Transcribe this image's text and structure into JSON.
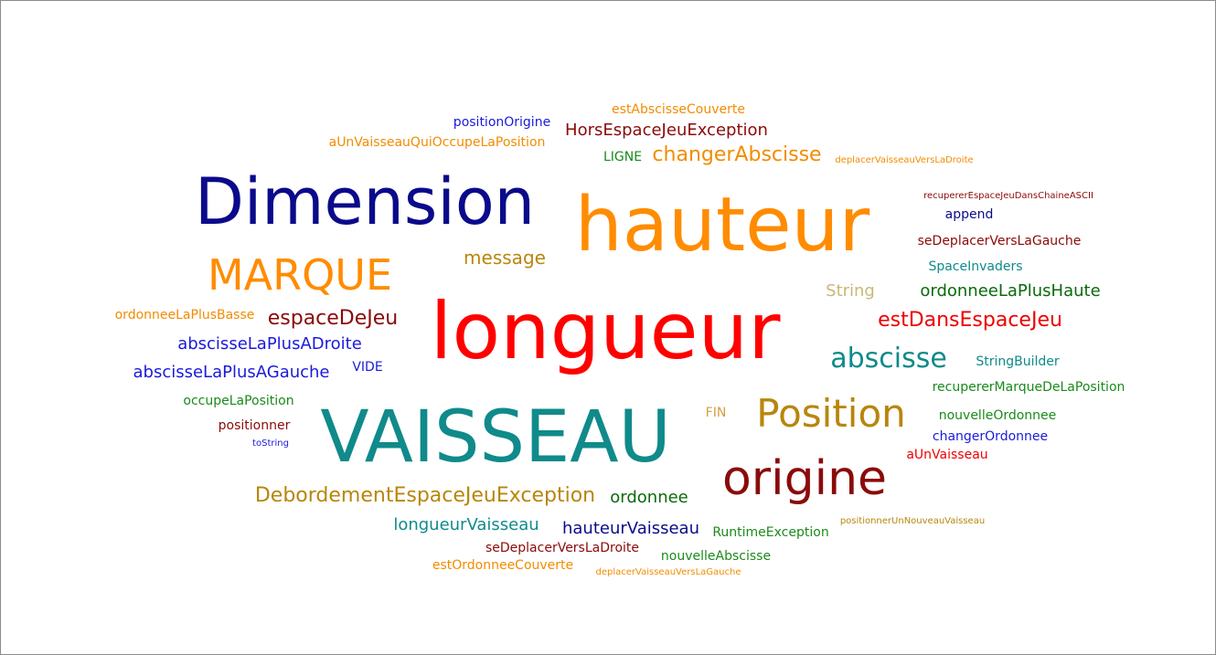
{
  "words": [
    {
      "text": "estAbscisseCouverte",
      "color": "#f28c00"
    },
    {
      "text": "positionOrigine",
      "color": "#1a1adb"
    },
    {
      "text": "HorsEspaceJeuException",
      "color": "#8b0a0a"
    },
    {
      "text": "aUnVaisseauQuiOccupeLaPosition",
      "color": "#f28c00"
    },
    {
      "text": "LIGNE",
      "color": "#1a8a1a"
    },
    {
      "text": "changerAbscisse",
      "color": "#f28c00"
    },
    {
      "text": "deplacerVaisseauVersLaDroite",
      "color": "#f28c00"
    },
    {
      "text": "Dimension",
      "color": "#0a0a8b"
    },
    {
      "text": "hauteur",
      "color": "#ff8c00"
    },
    {
      "text": "recupererEspaceJeuDansChaineASCII",
      "color": "#8b0a0a"
    },
    {
      "text": "append",
      "color": "#0a0a8b"
    },
    {
      "text": "seDeplacerVersLaGauche",
      "color": "#8b0a0a"
    },
    {
      "text": "MARQUE",
      "color": "#ff8c00"
    },
    {
      "text": "message",
      "color": "#b8860b"
    },
    {
      "text": "SpaceInvaders",
      "color": "#108a8a"
    },
    {
      "text": "String",
      "color": "#c8b878"
    },
    {
      "text": "ordonneeLaPlusHaute",
      "color": "#0a6a0a"
    },
    {
      "text": "ordonneeLaPlusBasse",
      "color": "#f28c00"
    },
    {
      "text": "espaceDeJeu",
      "color": "#8b0a0a"
    },
    {
      "text": "longueur",
      "color": "#ff0000"
    },
    {
      "text": "estDansEspaceJeu",
      "color": "#ee0000"
    },
    {
      "text": "abscisseLaPlusADroite",
      "color": "#1a1adb"
    },
    {
      "text": "abscisse",
      "color": "#108a8a"
    },
    {
      "text": "StringBuilder",
      "color": "#108a8a"
    },
    {
      "text": "VIDE",
      "color": "#1a1adb"
    },
    {
      "text": "abscisseLaPlusAGauche",
      "color": "#1a1adb"
    },
    {
      "text": "recupererMarqueDeLaPosition",
      "color": "#1a8a1a"
    },
    {
      "text": "occupeLaPosition",
      "color": "#1a8a1a"
    },
    {
      "text": "Position",
      "color": "#b8860b"
    },
    {
      "text": "FIN",
      "color": "#d4a040"
    },
    {
      "text": "nouvelleOrdonnee",
      "color": "#1a8a1a"
    },
    {
      "text": "positionner",
      "color": "#8b0a0a"
    },
    {
      "text": "VAISSEAU",
      "color": "#108a8a"
    },
    {
      "text": "changerOrdonnee",
      "color": "#1a1adb"
    },
    {
      "text": "toString",
      "color": "#1a1adb"
    },
    {
      "text": "aUnVaisseau",
      "color": "#ee0000"
    },
    {
      "text": "origine",
      "color": "#8b0a0a"
    },
    {
      "text": "DebordementEspaceJeuException",
      "color": "#b8860b"
    },
    {
      "text": "ordonnee",
      "color": "#0a6a0a"
    },
    {
      "text": "longueurVaisseau",
      "color": "#108a8a"
    },
    {
      "text": "hauteurVaisseau",
      "color": "#0a0a8b"
    },
    {
      "text": "RuntimeException",
      "color": "#1a8a1a"
    },
    {
      "text": "positionnerUnNouveauVaisseau",
      "color": "#b8860b"
    },
    {
      "text": "seDeplacerVersLaDroite",
      "color": "#8b0a0a"
    },
    {
      "text": "nouvelleAbscisse",
      "color": "#1a8a1a"
    },
    {
      "text": "estOrdonneeCouverte",
      "color": "#f28c00"
    },
    {
      "text": "deplacerVaisseauVersLaGauche",
      "color": "#f28c00"
    }
  ]
}
